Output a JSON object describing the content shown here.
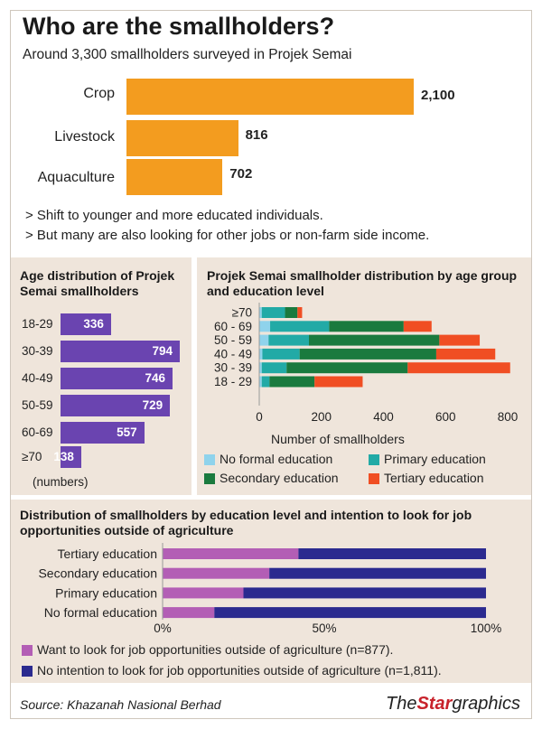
{
  "header": {
    "title": "Who are the smallholders?",
    "subtitle": "Around 3,300 smallholders surveyed in Projek Semai"
  },
  "notes": [
    "> Shift to younger and more educated individuals.",
    "> But many are also looking for other jobs or non-farm side income."
  ],
  "chart_data": [
    {
      "type": "bar",
      "orientation": "horizontal",
      "title": "Who are the smallholders?",
      "categories": [
        "Crop",
        "Livestock",
        "Aquaculture"
      ],
      "values": [
        2100,
        816,
        702
      ],
      "value_labels": [
        "2,100",
        "816",
        "702"
      ],
      "color": "#f39c1f"
    },
    {
      "type": "bar",
      "orientation": "horizontal",
      "title": "Age distribution of Projek Semai smallholders",
      "categories": [
        "18-29",
        "30-39",
        "40-49",
        "50-59",
        "60-69",
        "≥70"
      ],
      "values": [
        336,
        794,
        746,
        729,
        557,
        138
      ],
      "unit_note": "(numbers)",
      "color": "#6a44b0"
    },
    {
      "type": "bar",
      "orientation": "horizontal",
      "stacked": true,
      "title": "Projek Semai smallholder distribution by age group and education level",
      "categories": [
        "≥70",
        "60 - 69",
        "50 - 59",
        "40 - 49",
        "30 - 39",
        "18 - 29"
      ],
      "series": [
        {
          "name": "No formal education",
          "color": "#8fd3ec",
          "values": [
            8,
            35,
            30,
            10,
            8,
            8
          ]
        },
        {
          "name": "Primary education",
          "color": "#22aaa6",
          "values": [
            75,
            190,
            130,
            120,
            80,
            25
          ]
        },
        {
          "name": "Secondary education",
          "color": "#1a7a3e",
          "values": [
            40,
            240,
            420,
            440,
            390,
            145
          ]
        },
        {
          "name": "Tertiary education",
          "color": "#f04e23",
          "values": [
            15,
            90,
            130,
            190,
            330,
            155
          ]
        }
      ],
      "xlabel": "Number of smallholders",
      "xlim": [
        0,
        800
      ],
      "xticks": [
        "0",
        "200",
        "400",
        "600",
        "800"
      ]
    },
    {
      "type": "bar",
      "orientation": "horizontal",
      "stacked": true,
      "title": "Distribution of smallholders by education level and intention to look for job opportunities outside of agriculture",
      "categories": [
        "Tertiary education",
        "Secondary education",
        "Primary education",
        "No formal education"
      ],
      "series": [
        {
          "name": "Want to look for job opportunities outside of agriculture (n=877).",
          "color": "#b35eb5",
          "values": [
            42,
            33,
            25,
            16
          ]
        },
        {
          "name": "No intention to look for job opportunities outside of agriculture (n=1,811).",
          "color": "#2b2a8f",
          "values": [
            58,
            67,
            75,
            84
          ]
        }
      ],
      "xlim": [
        0,
        100
      ],
      "xticks": [
        "0%",
        "50%",
        "100%"
      ]
    }
  ],
  "footer": {
    "source": "Source: Khazanah Nasional Berhad",
    "logo_the": "The",
    "logo_star": "Star",
    "logo_graphics": "graphics"
  }
}
